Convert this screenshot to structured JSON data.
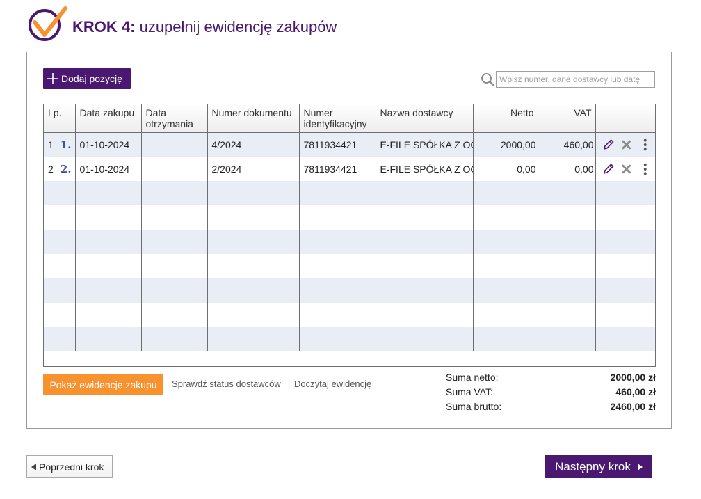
{
  "header": {
    "step_label": "KROK 4:",
    "title": "uzupełnij ewidencję zakupów",
    "logo_icon": "checkmark-circle-icon",
    "accent_color": "#4a1870",
    "logo_check_color": "#f7922f"
  },
  "toolbar": {
    "add_label": "Dodaj pozycję",
    "add_icon": "plus-icon",
    "search_icon": "search-icon",
    "search_placeholder": "Wpisz numer, dane dostawcy lub datę",
    "search_value": ""
  },
  "table": {
    "columns": [
      {
        "key": "lp",
        "label": "Lp."
      },
      {
        "key": "data_zakupu",
        "label": "Data zakupu"
      },
      {
        "key": "data_otrzymania",
        "label": "Data otrzymania"
      },
      {
        "key": "numer_dokumentu",
        "label": "Numer dokumentu"
      },
      {
        "key": "numer_identyfikacyjny",
        "label": "Numer identyfikacyjny"
      },
      {
        "key": "nazwa_dostawcy",
        "label": "Nazwa dostawcy"
      },
      {
        "key": "netto",
        "label": "Netto"
      },
      {
        "key": "vat",
        "label": "VAT"
      },
      {
        "key": "actions",
        "label": ""
      }
    ],
    "rows": [
      {
        "lp": "1",
        "ordinal": "1.",
        "data_zakupu": "01-10-2024",
        "data_otrzymania": "",
        "numer_dokumentu": "4/2024",
        "numer_identyfikacyjny": "7811934421",
        "nazwa_dostawcy": "E-FILE SPÓŁKA Z OGRANICZONĄ ODPOWIEDZIALNOŚCIĄ",
        "netto": "2000,00",
        "vat": "460,00"
      },
      {
        "lp": "2",
        "ordinal": "2.",
        "data_zakupu": "01-10-2024",
        "data_otrzymania": "",
        "numer_dokumentu": "2/2024",
        "numer_identyfikacyjny": "7811934421",
        "nazwa_dostawcy": "E-FILE SPÓŁKA Z OGRANICZONĄ ODPOWIEDZIALNOŚCIĄ",
        "netto": "0,00",
        "vat": "0,00"
      }
    ],
    "empty_rows": 7,
    "row_actions": [
      "pencil-edit-icon",
      "close-x-icon",
      "kebab-menu-icon"
    ],
    "stripe_color": "#e9eef6"
  },
  "footer": {
    "show_button": "Pokaż ewidencję zakupu",
    "show_button_color": "#f7922f",
    "link_status": "Sprawdź status dostawców",
    "link_load": "Doczytaj ewidencję",
    "sum_netto_label": "Suma netto:",
    "sum_netto_value": "2000,00 zł",
    "sum_vat_label": "Suma VAT:",
    "sum_vat_value": "460,00 zł",
    "sum_brutto_label": "Suma brutto:",
    "sum_brutto_value": "2460,00 zł"
  },
  "nav": {
    "prev_label": "Poprzedni krok",
    "next_label": "Następny krok"
  }
}
